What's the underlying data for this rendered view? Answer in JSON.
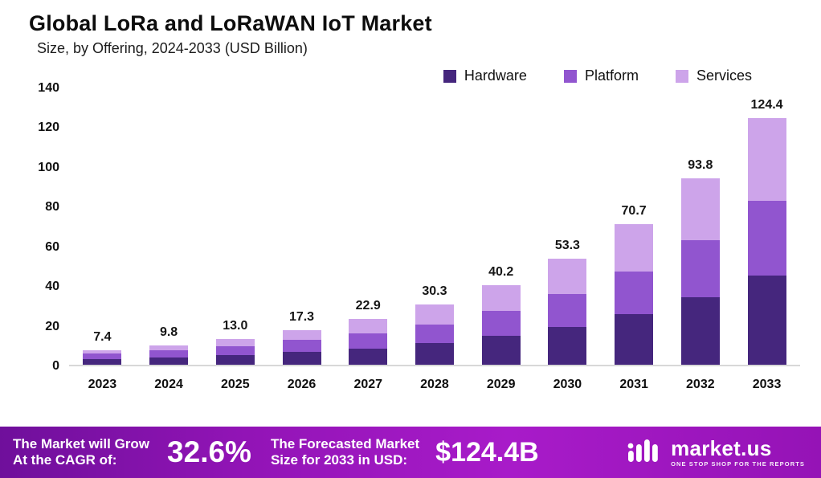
{
  "title": "Global LoRa and LoRaWAN IoT Market",
  "subtitle": "Size, by Offering, 2024-2033 (USD Billion)",
  "legend": [
    {
      "label": "Hardware",
      "color": "#45267d"
    },
    {
      "label": "Platform",
      "color": "#9155cf"
    },
    {
      "label": "Services",
      "color": "#cda4ea"
    }
  ],
  "chart_data": {
    "type": "bar",
    "stacked": true,
    "title": "Global LoRa and LoRaWAN IoT Market",
    "subtitle": "Size, by Offering, 2024-2033 (USD Billion)",
    "unit": "USD Billion",
    "categories": [
      "2023",
      "2024",
      "2025",
      "2026",
      "2027",
      "2028",
      "2029",
      "2030",
      "2031",
      "2032",
      "2033"
    ],
    "series": [
      {
        "name": "Hardware",
        "color": "#45267d",
        "values": [
          2.7,
          3.6,
          4.8,
          6.3,
          8.1,
          11.0,
          14.6,
          19.0,
          25.5,
          34.0,
          45.0
        ]
      },
      {
        "name": "Platform",
        "color": "#9155cf",
        "values": [
          2.8,
          3.6,
          4.7,
          6.2,
          7.7,
          9.3,
          12.5,
          16.6,
          21.5,
          28.7,
          37.6
        ]
      },
      {
        "name": "Services",
        "color": "#cda4ea",
        "values": [
          1.9,
          2.6,
          3.5,
          4.8,
          7.1,
          10.0,
          13.1,
          17.7,
          23.7,
          31.1,
          41.8
        ]
      }
    ],
    "totals": [
      7.4,
      9.8,
      13.0,
      17.3,
      22.9,
      30.3,
      40.2,
      53.3,
      70.7,
      93.8,
      124.4
    ],
    "total_labels": [
      "7.4",
      "9.8",
      "13.0",
      "17.3",
      "22.9",
      "30.3",
      "40.2",
      "53.3",
      "70.7",
      "93.8",
      "124.4"
    ],
    "ylim": [
      0,
      140
    ],
    "yticks": [
      0,
      20,
      40,
      60,
      80,
      100,
      120,
      140
    ],
    "grid": false,
    "legend_position": "top-right"
  },
  "banner": {
    "cagr_label_line1": "The Market will Grow",
    "cagr_label_line2": "At the CAGR of:",
    "cagr_value": "32.6%",
    "forecast_label_line1": "The Forecasted Market",
    "forecast_label_line2": "Size for 2033 in USD:",
    "forecast_value": "$124.4B",
    "brand": "market.us",
    "brand_tagline": "One Stop Shop for the Reports"
  }
}
